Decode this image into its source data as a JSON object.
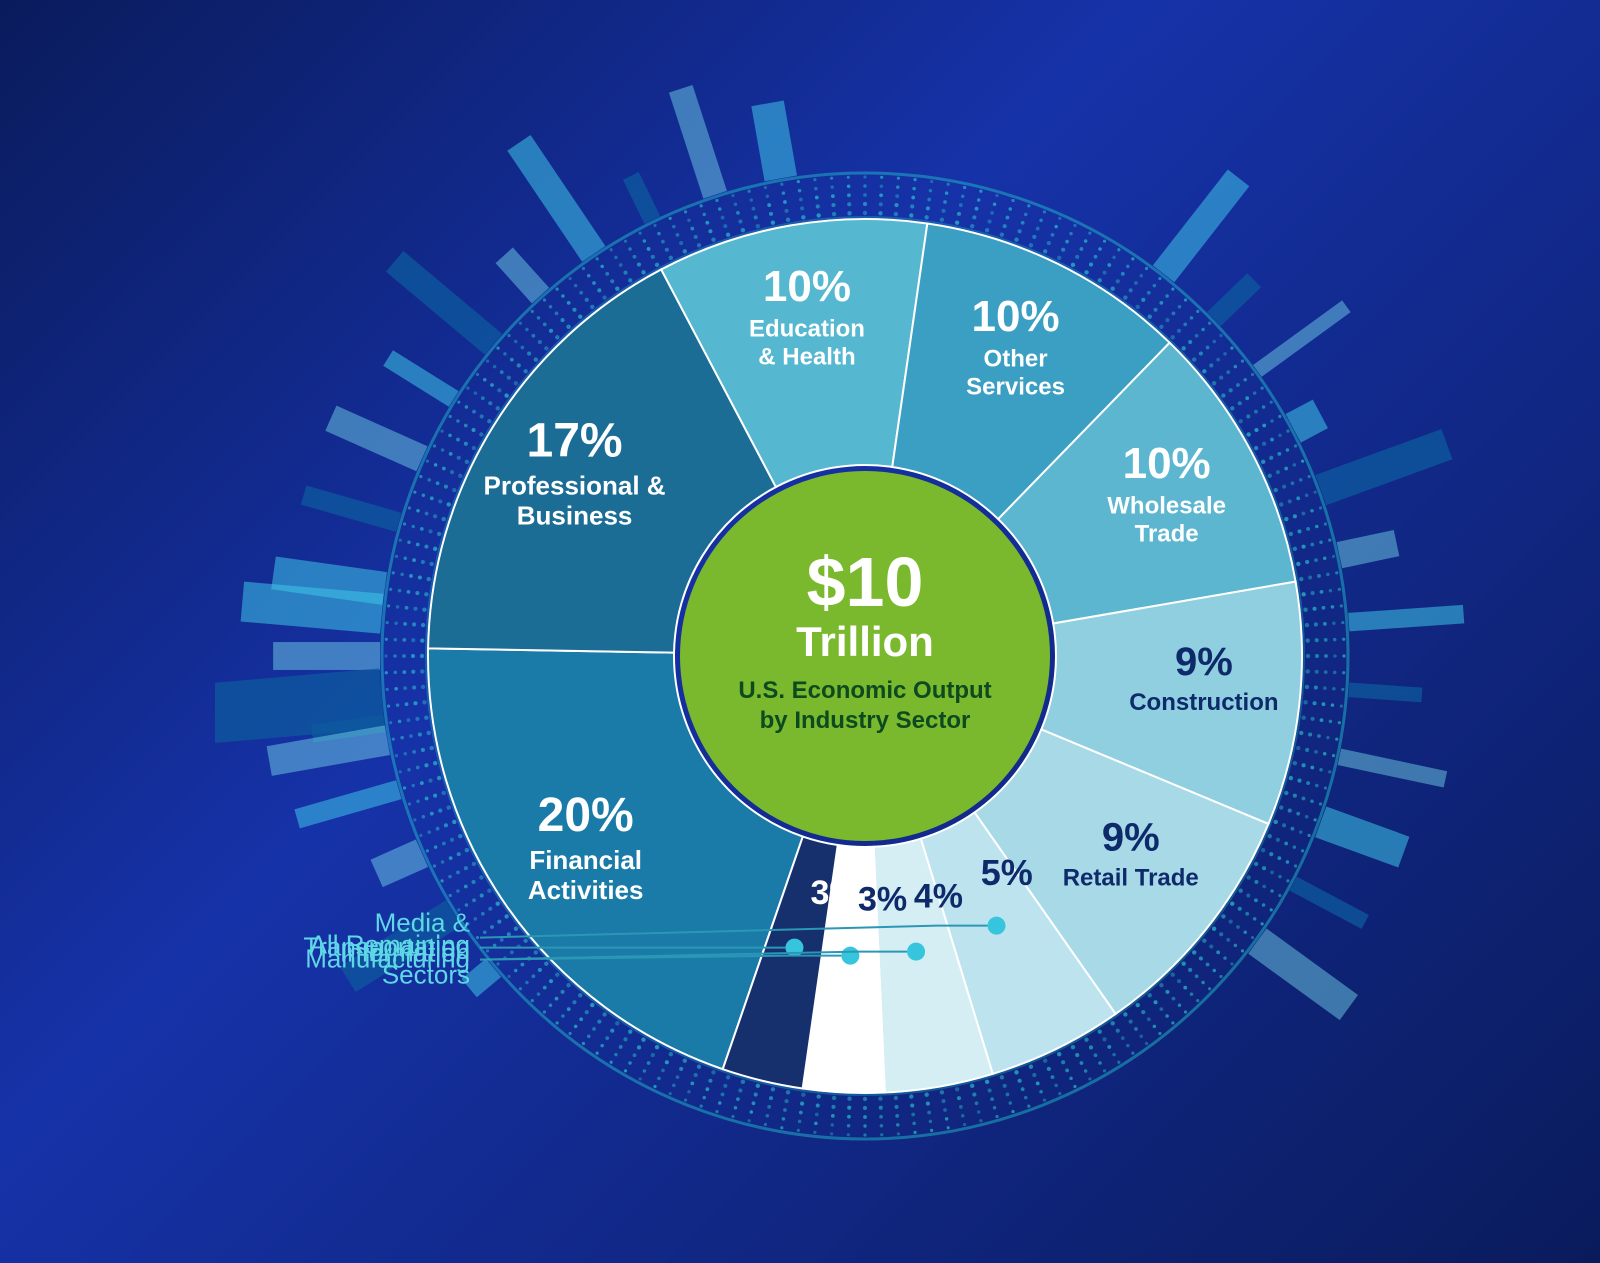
{
  "chart": {
    "type": "pie",
    "center": {
      "amount": "$10",
      "unit": "Trillion",
      "line1": "U.S. Economic Output",
      "line2": "by Industry Sector",
      "bg": "#7ab92e",
      "radius": 185
    },
    "outerRadius": 485,
    "innerStrokeColor": "#ffffff",
    "ringDotColor": "#2fd0d8",
    "background": "#0a1b5c",
    "startAngle": -161,
    "slices": [
      {
        "pct": 20,
        "pctLabel": "20%",
        "label": "Financial\nActivities",
        "color": "#1a7aa8",
        "textColor": "light",
        "fontSize": 48,
        "labelSize": 26
      },
      {
        "pct": 17,
        "pctLabel": "17%",
        "label": "Professional &\nBusiness",
        "color": "#1b6d96",
        "textColor": "light",
        "fontSize": 48,
        "labelSize": 26
      },
      {
        "pct": 10,
        "pctLabel": "10%",
        "label": "Education\n& Health",
        "color": "#55b8d0",
        "textColor": "light",
        "fontSize": 44,
        "labelSize": 24
      },
      {
        "pct": 10,
        "pctLabel": "10%",
        "label": "Other\nServices",
        "color": "#3a9fc2",
        "textColor": "light",
        "fontSize": 44,
        "labelSize": 24
      },
      {
        "pct": 10,
        "pctLabel": "10%",
        "label": "Wholesale\nTrade",
        "color": "#5cb6d0",
        "textColor": "light",
        "fontSize": 44,
        "labelSize": 24
      },
      {
        "pct": 9,
        "pctLabel": "9%",
        "label": "Construction",
        "color": "#8fcfe0",
        "textColor": "dark",
        "fontSize": 40,
        "labelSize": 24
      },
      {
        "pct": 9,
        "pctLabel": "9%",
        "label": "Retail Trade",
        "color": "#a7d9e6",
        "textColor": "dark",
        "fontSize": 40,
        "labelSize": 24
      },
      {
        "pct": 5,
        "pctLabel": "5%",
        "label": "",
        "color": "#bde4ee",
        "textColor": "dark",
        "fontSize": 36,
        "labelSize": 0
      },
      {
        "pct": 4,
        "pctLabel": "4%",
        "label": "",
        "color": "#d4eef4",
        "textColor": "dark",
        "fontSize": 34,
        "labelSize": 0
      },
      {
        "pct": 3,
        "pctLabel": "3%",
        "label": "",
        "color": "#ffffff",
        "textColor": "dark",
        "fontSize": 34,
        "labelSize": 0
      },
      {
        "pct": 3,
        "pctLabel": "3%",
        "label": "",
        "color": "#16306e",
        "textColor": "light",
        "fontSize": 34,
        "labelSize": 0
      }
    ],
    "externalLabels": [
      {
        "text": "Transportation",
        "sliceIndex": 10
      },
      {
        "text": "Manufacturing",
        "sliceIndex": 9
      },
      {
        "text": "All Remaining\nSectors",
        "sliceIndex": 8
      },
      {
        "text": "Media &\nInformation",
        "sliceIndex": 7
      }
    ],
    "externalLabelColor": "#5fd7e6",
    "leaderDotColor": "#37c5dd",
    "leaderLineColor": "#2a97b5"
  }
}
